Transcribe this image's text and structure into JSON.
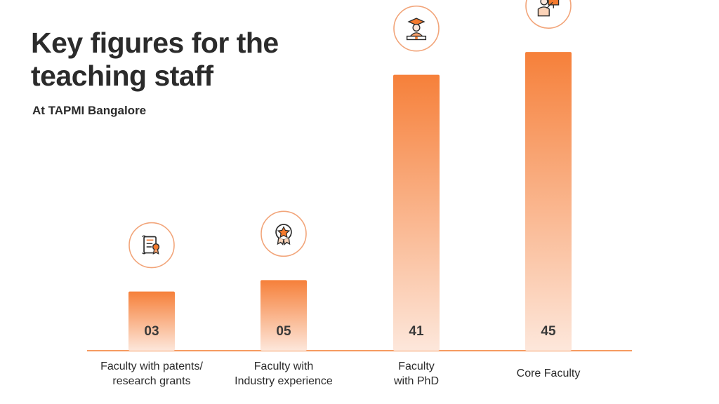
{
  "header": {
    "title_line1": "Key figures for the",
    "title_line2": "teaching staff",
    "subtitle": "At TAPMI Bangalore"
  },
  "colors": {
    "accent": "#f47a2d",
    "bar_top": "#f6803a",
    "bar_bottom": "#fde7db",
    "icon_ring": "#f2a57a",
    "text": "#2b2b2b"
  },
  "chart_data": {
    "type": "bar",
    "title": "Key figures for the teaching staff",
    "subtitle": "At TAPMI Bangalore",
    "categories": [
      [
        "Faculty with patents/",
        "research grants"
      ],
      [
        "Faculty with",
        "Industry experience"
      ],
      [
        "Faculty",
        "with PhD"
      ],
      [
        "Core Faculty"
      ]
    ],
    "values": [
      3,
      5,
      41,
      45
    ],
    "value_labels": [
      "03",
      "05",
      "41",
      "45"
    ],
    "icons": [
      "certificate-icon",
      "award-badge-icon",
      "graduate-icon",
      "teacher-presentation-icon"
    ],
    "xlabel": "",
    "ylabel": "",
    "grid": false,
    "legend": "none"
  }
}
